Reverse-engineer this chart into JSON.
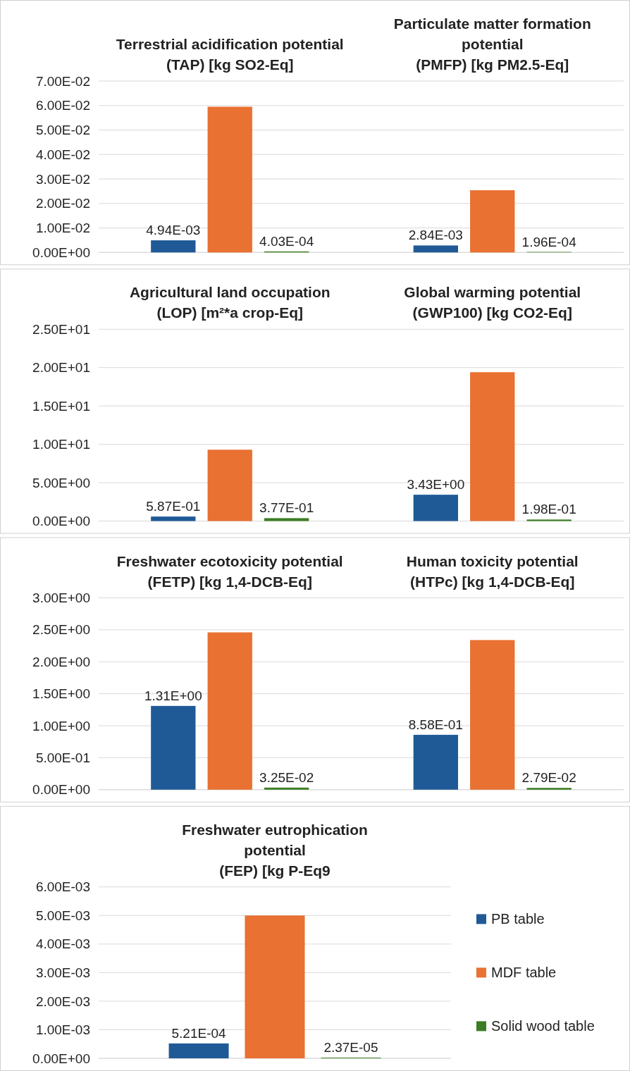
{
  "chart_data": [
    {
      "type": "bar",
      "categories": [
        "Terrestrial acidification potential (TAP) [kg SO2-Eq]",
        "Particulate matter formation potential (PMFP) [kg PM2.5-Eq]"
      ],
      "ylim": [
        0,
        0.07
      ],
      "yticks": [
        {
          "value": 0,
          "label": "0.00E+00"
        },
        {
          "value": 0.01,
          "label": "1.00E-02"
        },
        {
          "value": 0.02,
          "label": "2.00E-02"
        },
        {
          "value": 0.03,
          "label": "3.00E-02"
        },
        {
          "value": 0.04,
          "label": "4.00E-02"
        },
        {
          "value": 0.05,
          "label": "5.00E-02"
        },
        {
          "value": 0.06,
          "label": "6.00E-02"
        },
        {
          "value": 0.07,
          "label": "7.00E-02"
        }
      ],
      "grid": "y",
      "series": [
        {
          "color": "#1f5a96",
          "values": [
            0.00494,
            0.00284
          ],
          "value_labels": [
            "4.94E-03",
            "2.84E-03"
          ]
        },
        {
          "color": "#e97132",
          "values": [
            0.0595,
            0.0254
          ],
          "value_labels": [
            null,
            null
          ]
        },
        {
          "color": "#3b7d23",
          "values": [
            0.000403,
            0.000196
          ],
          "value_labels": [
            "4.03E-04",
            "1.96E-04"
          ]
        }
      ]
    },
    {
      "type": "bar",
      "categories": [
        "Agricultural land occupation (LOP) [m²*a crop-Eq]",
        "Global warming potential (GWP100) [kg CO2-Eq]"
      ],
      "ylim": [
        0,
        25
      ],
      "yticks": [
        {
          "value": 0,
          "label": "0.00E+00"
        },
        {
          "value": 5,
          "label": "5.00E+00"
        },
        {
          "value": 10,
          "label": "1.00E+01"
        },
        {
          "value": 15,
          "label": "1.50E+01"
        },
        {
          "value": 20,
          "label": "2.00E+01"
        },
        {
          "value": 25,
          "label": "2.50E+01"
        }
      ],
      "grid": "y",
      "series": [
        {
          "color": "#1f5a96",
          "values": [
            0.587,
            3.43
          ],
          "value_labels": [
            "5.87E-01",
            "3.43E+00"
          ]
        },
        {
          "color": "#e97132",
          "values": [
            9.3,
            19.4
          ],
          "value_labels": [
            null,
            null
          ]
        },
        {
          "color": "#3b7d23",
          "values": [
            0.377,
            0.198
          ],
          "value_labels": [
            "3.77E-01",
            "1.98E-01"
          ]
        }
      ]
    },
    {
      "type": "bar",
      "categories": [
        "Freshwater ecotoxicity potential (FETP) [kg 1,4-DCB-Eq]",
        "Human toxicity potential (HTPc) [kg 1,4-DCB-Eq]"
      ],
      "ylim": [
        0,
        3
      ],
      "yticks": [
        {
          "value": 0,
          "label": "0.00E+00"
        },
        {
          "value": 0.5,
          "label": "5.00E-01"
        },
        {
          "value": 1,
          "label": "1.00E+00"
        },
        {
          "value": 1.5,
          "label": "1.50E+00"
        },
        {
          "value": 2,
          "label": "2.00E+00"
        },
        {
          "value": 2.5,
          "label": "2.50E+00"
        },
        {
          "value": 3,
          "label": "3.00E+00"
        }
      ],
      "grid": "y",
      "series": [
        {
          "color": "#1f5a96",
          "values": [
            1.31,
            0.858
          ],
          "value_labels": [
            "1.31E+00",
            "8.58E-01"
          ]
        },
        {
          "color": "#e97132",
          "values": [
            2.46,
            2.34
          ],
          "value_labels": [
            null,
            null
          ]
        },
        {
          "color": "#3b7d23",
          "values": [
            0.0325,
            0.0279
          ],
          "value_labels": [
            "3.25E-02",
            "2.79E-02"
          ]
        }
      ]
    },
    {
      "type": "bar",
      "categories": [
        "Freshwater eutrophication potential (FEP) [kg P-Eq9"
      ],
      "ylim": [
        0,
        0.006
      ],
      "yticks": [
        {
          "value": 0,
          "label": "0.00E+00"
        },
        {
          "value": 0.001,
          "label": "1.00E-03"
        },
        {
          "value": 0.002,
          "label": "2.00E-03"
        },
        {
          "value": 0.003,
          "label": "3.00E-03"
        },
        {
          "value": 0.004,
          "label": "4.00E-03"
        },
        {
          "value": 0.005,
          "label": "5.00E-03"
        },
        {
          "value": 0.006,
          "label": "6.00E-03"
        }
      ],
      "grid": "y",
      "legend": "right",
      "series": [
        {
          "name": "PB table",
          "color": "#1f5a96",
          "values": [
            0.000521
          ],
          "value_labels": [
            "5.21E-04"
          ]
        },
        {
          "name": "MDF table",
          "color": "#e97132",
          "values": [
            0.005
          ],
          "value_labels": [
            null
          ]
        },
        {
          "name": "Solid wood table",
          "color": "#3b7d23",
          "values": [
            2.37e-05
          ],
          "value_labels": [
            "2.37E-05"
          ]
        }
      ]
    }
  ]
}
